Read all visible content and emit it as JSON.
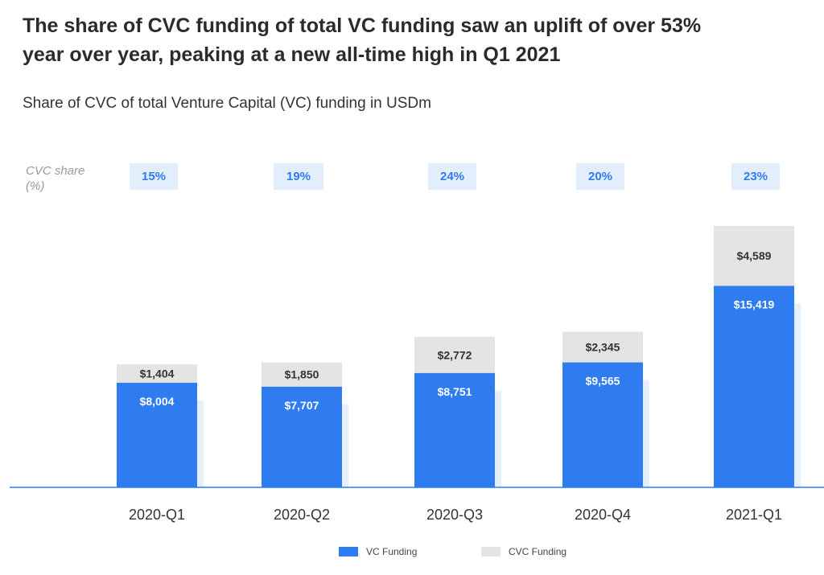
{
  "title_lines": [
    "The share of CVC funding of total VC funding saw an uplift of over 53%",
    "year over year, peaking at a new all-time high in Q1 2021"
  ],
  "subtitle": "Share of CVC of total Venture Capital (VC) funding in USDm",
  "share_label_lines": [
    "CVC share",
    "(%)"
  ],
  "colors": {
    "vc": "#2f7bf0",
    "cvc": "#e4e4e4",
    "shadow": "#e6effc",
    "badge_bg": "#e3eefc",
    "badge_text": "#2f7bf0"
  },
  "chart_data": {
    "type": "bar",
    "stacked": true,
    "title": "Share of CVC of total Venture Capital (VC) funding in USDm",
    "categories": [
      "2020-Q1",
      "2020-Q2",
      "2020-Q3",
      "2020-Q4",
      "2021-Q1"
    ],
    "series": [
      {
        "name": "VC Funding",
        "values": [
          8004,
          7707,
          8751,
          9565,
          15419
        ],
        "labels": [
          "$8,004",
          "$7,707",
          "$8,751",
          "$9,565",
          "$15,419"
        ]
      },
      {
        "name": "CVC Funding",
        "values": [
          1404,
          1850,
          2772,
          2345,
          4589
        ],
        "labels": [
          "$1,404",
          "$1,850",
          "$2,772",
          "$2,345",
          "$4,589"
        ]
      }
    ],
    "cvc_share": [
      "15%",
      "19%",
      "24%",
      "20%",
      "23%"
    ],
    "ylim": [
      0,
      20000
    ],
    "legend": [
      "VC Funding",
      "CVC Funding"
    ],
    "legend_position": "bottom-center"
  }
}
